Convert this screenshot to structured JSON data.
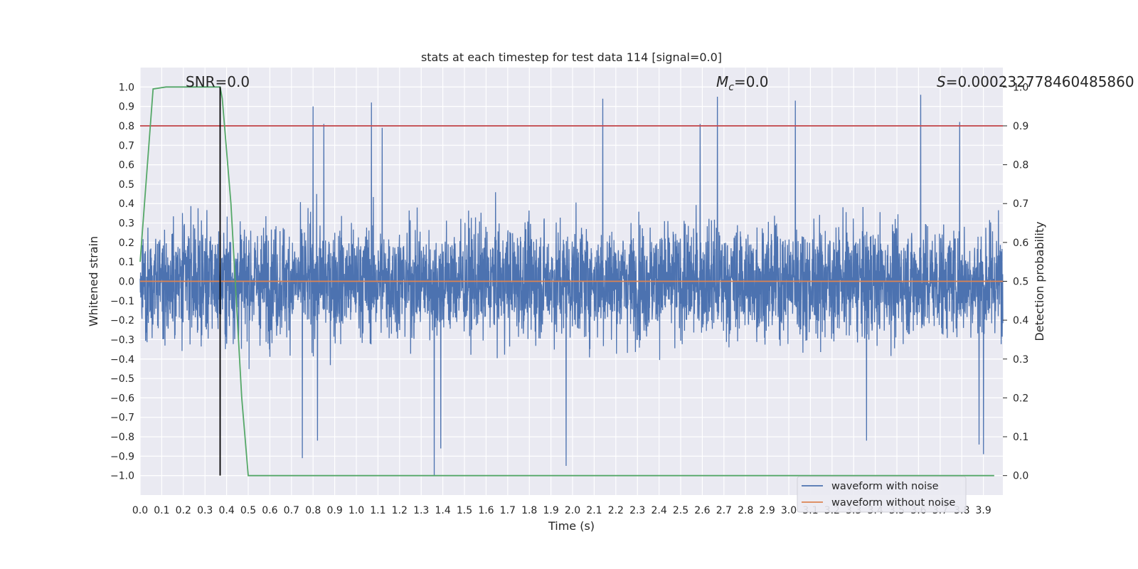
{
  "chart_data": {
    "type": "line",
    "title": "stats at each timestep for test data 114 [signal=0.0]",
    "xlabel": "Time (s)",
    "ylabel": "Whitened strain",
    "y2label": "Detection probability",
    "xlim": [
      0.0,
      3.99
    ],
    "ylim": [
      -1.1,
      1.1
    ],
    "y2lim": [
      -0.05,
      1.05
    ],
    "x_ticks": [
      "0.0",
      "0.1",
      "0.2",
      "0.3",
      "0.4",
      "0.5",
      "0.6",
      "0.7",
      "0.8",
      "0.9",
      "1.0",
      "1.1",
      "1.2",
      "1.3",
      "1.4",
      "1.5",
      "1.6",
      "1.7",
      "1.8",
      "1.9",
      "2.0",
      "2.1",
      "2.2",
      "2.3",
      "2.4",
      "2.5",
      "2.6",
      "2.7",
      "2.8",
      "2.9",
      "3.0",
      "3.1",
      "3.2",
      "3.3",
      "3.4",
      "3.5",
      "3.6",
      "3.7",
      "3.8",
      "3.9"
    ],
    "y_ticks": [
      "−1.0",
      "−0.9",
      "−0.8",
      "−0.7",
      "−0.6",
      "−0.5",
      "−0.4",
      "−0.3",
      "−0.2",
      "−0.1",
      "0.0",
      "0.1",
      "0.2",
      "0.3",
      "0.4",
      "0.5",
      "0.6",
      "0.7",
      "0.8",
      "0.9",
      "1.0"
    ],
    "y2_ticks": [
      "0.0",
      "0.1",
      "0.2",
      "0.3",
      "0.4",
      "0.5",
      "0.6",
      "0.7",
      "0.8",
      "0.9",
      "1.0"
    ],
    "grid": true,
    "legend_position": "lower-right",
    "series": [
      {
        "name": "waveform with noise",
        "color": "#4c72b0",
        "axis": "left",
        "description_kind": "noise",
        "amplitude_typical": 0.28,
        "extreme_spikes": [
          {
            "x": 0.8,
            "y": 0.9
          },
          {
            "x": 0.85,
            "y": 0.81
          },
          {
            "x": 1.07,
            "y": 0.92
          },
          {
            "x": 1.12,
            "y": 0.79
          },
          {
            "x": 2.14,
            "y": 0.94
          },
          {
            "x": 2.59,
            "y": 0.81
          },
          {
            "x": 2.67,
            "y": 0.95
          },
          {
            "x": 3.03,
            "y": 0.93
          },
          {
            "x": 3.61,
            "y": 0.96
          },
          {
            "x": 3.79,
            "y": 0.82
          },
          {
            "x": 1.36,
            "y": -1.0
          },
          {
            "x": 1.39,
            "y": -0.86
          },
          {
            "x": 1.97,
            "y": -0.95
          },
          {
            "x": 0.75,
            "y": -0.91
          },
          {
            "x": 0.82,
            "y": -0.82
          },
          {
            "x": 3.88,
            "y": -0.84
          },
          {
            "x": 3.9,
            "y": -0.89
          },
          {
            "x": 3.36,
            "y": -0.82
          }
        ]
      },
      {
        "name": "waveform without noise",
        "color": "#dd8452",
        "axis": "left",
        "x": [
          0.0,
          3.99
        ],
        "y": [
          0.0,
          0.0
        ]
      },
      {
        "name": "",
        "color": "#55a868",
        "axis": "right",
        "x": [
          0.0,
          0.06,
          0.12,
          0.2,
          0.3,
          0.37,
          0.38,
          0.42,
          0.47,
          0.5,
          0.8,
          3.95
        ],
        "y": [
          0.55,
          0.995,
          1.0,
          1.0,
          1.0,
          1.0,
          0.97,
          0.7,
          0.2,
          0.0,
          0.0,
          0.0
        ]
      }
    ],
    "threshold": {
      "value": 0.9,
      "axis": "right",
      "color": "#c44e52"
    },
    "vline": {
      "x": 0.37,
      "y_bottom": -1.0,
      "y_top": 1.0,
      "color": "#000000"
    },
    "annotations": {
      "snr_label": "SNR=0.0",
      "mc_label": "=0.0",
      "mc_symbol": "M",
      "mc_sub": "c",
      "s_symbol": "S",
      "s_label": "=0.000232778460485860"
    }
  }
}
